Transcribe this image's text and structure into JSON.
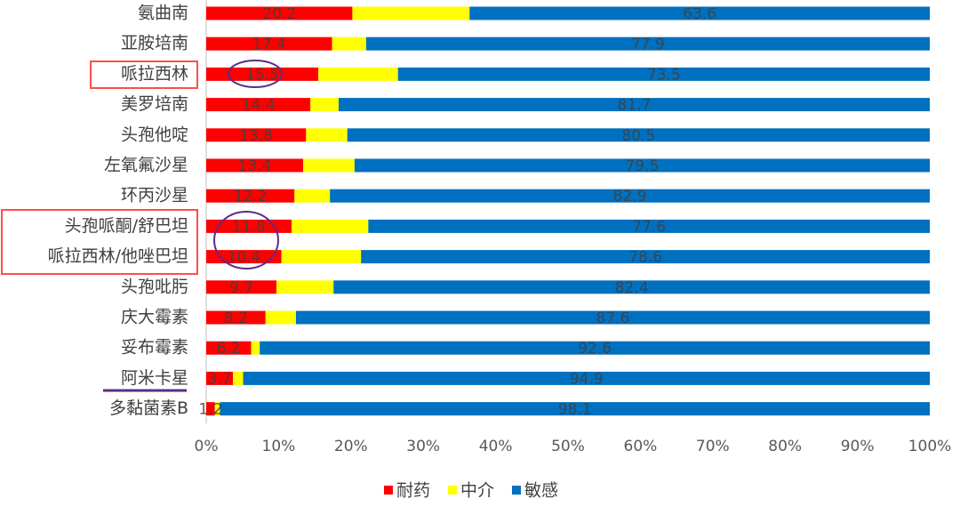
{
  "chart_data": {
    "type": "stacked-bar-horizontal",
    "categories": [
      "氨曲南",
      "亚胺培南",
      "哌拉西林",
      "美罗培南",
      "头孢他啶",
      "左氧氟沙星",
      "环丙沙星",
      "头孢哌酮/舒巴坦",
      "哌拉西林/他唑巴坦",
      "头孢吡肟",
      "庆大霉素",
      "妥布霉素",
      "阿米卡星",
      "多黏菌素B"
    ],
    "series": [
      {
        "name": "耐药",
        "color": "#ff0000",
        "show_labels": true,
        "values": [
          20.2,
          17.4,
          15.5,
          14.4,
          13.8,
          13.4,
          12.2,
          11.8,
          10.4,
          9.7,
          8.2,
          6.2,
          3.7,
          1.2
        ]
      },
      {
        "name": "中介",
        "color": "#ffff00",
        "show_labels": false,
        "values": [
          16.2,
          4.7,
          11.0,
          3.9,
          5.7,
          7.1,
          4.9,
          10.6,
          11.0,
          7.9,
          4.2,
          1.2,
          1.4,
          0.7
        ]
      },
      {
        "name": "敏感",
        "color": "#0070c0",
        "show_labels": true,
        "values": [
          63.6,
          77.9,
          73.5,
          81.7,
          80.5,
          79.5,
          82.9,
          77.6,
          78.6,
          82.4,
          87.6,
          92.6,
          94.9,
          98.1
        ]
      }
    ],
    "xlim": [
      0,
      100
    ],
    "xticks": [
      {
        "value": 0,
        "label": "0%"
      },
      {
        "value": 10,
        "label": "10%"
      },
      {
        "value": 20,
        "label": "20%"
      },
      {
        "value": 30,
        "label": "30%"
      },
      {
        "value": 40,
        "label": "40%"
      },
      {
        "value": 50,
        "label": "50%"
      },
      {
        "value": 60,
        "label": "60%"
      },
      {
        "value": 70,
        "label": "70%"
      },
      {
        "value": 80,
        "label": "80%"
      },
      {
        "value": 90,
        "label": "90%"
      },
      {
        "value": 100,
        "label": "100%"
      }
    ],
    "legend": "bottom"
  }
}
